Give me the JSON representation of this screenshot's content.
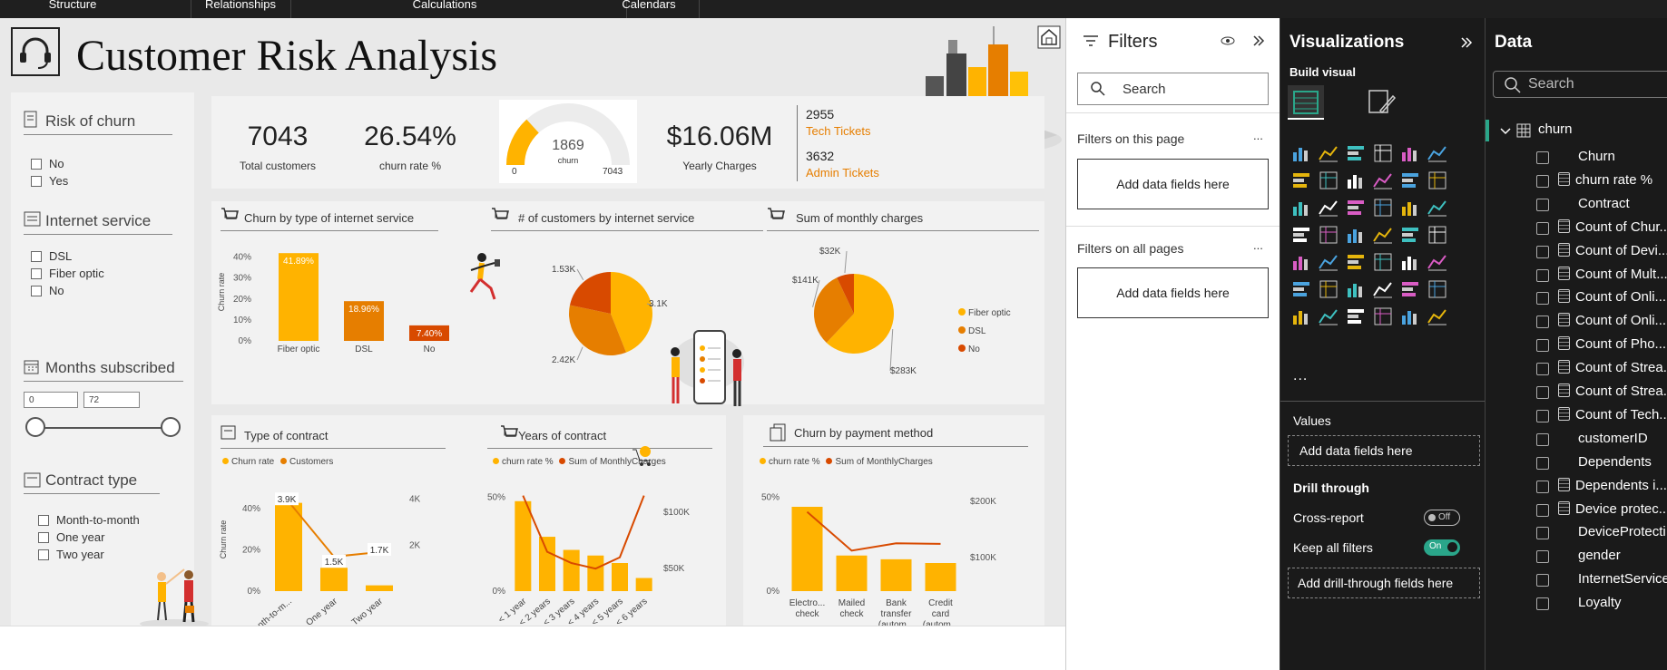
{
  "topbar": {
    "tabs": [
      "Structure",
      "Relationships",
      "Calculations",
      "Calendars"
    ]
  },
  "report": {
    "title": "Customer Risk Analysis",
    "slicers": {
      "risk": {
        "title": "Risk of churn",
        "options": [
          "No",
          "Yes"
        ]
      },
      "internet": {
        "title": "Internet service",
        "options": [
          "DSL",
          "Fiber optic",
          "No"
        ]
      },
      "months": {
        "title": "Months subscribed",
        "min": "0",
        "max": "72"
      },
      "contract": {
        "title": "Contract type",
        "options": [
          "Month-to-month",
          "One year",
          "Two year"
        ]
      }
    },
    "kpis": {
      "total_customers": {
        "value": "7043",
        "label": "Total customers"
      },
      "churn_rate": {
        "value": "26.54%",
        "label": "churn rate %"
      },
      "gauge": {
        "value": "1869",
        "label": "churn",
        "min": "0",
        "max": "7043",
        "fraction": 0.265
      },
      "yearly": {
        "value": "$16.06M",
        "label": "Yearly Charges"
      },
      "tech": {
        "value": "2955",
        "label": "Tech Tickets"
      },
      "admin": {
        "value": "3632",
        "label": "Admin Tickets"
      }
    },
    "charts": {
      "churn_internet": {
        "title": "Churn by type of internet service",
        "ylabel": "Churn rate",
        "yticks": [
          "40%",
          "30%",
          "20%",
          "10%",
          "0%"
        ]
      },
      "customers_internet": {
        "title": "# of customers by internet service"
      },
      "monthly": {
        "title": "Sum of monthly charges"
      },
      "contract": {
        "title": "Type of contract",
        "legend": [
          "Churn rate",
          "Customers"
        ],
        "ylabel": "Churn rate",
        "yticks": [
          "40%",
          "20%",
          "0%"
        ],
        "y2ticks": [
          "4K",
          "2K"
        ]
      },
      "years": {
        "title": "Years of contract",
        "legend": [
          "churn rate %",
          "Sum of MonthlyCharges"
        ],
        "yticks": [
          "50%",
          "0%"
        ],
        "y2ticks": [
          "$100K",
          "$50K"
        ]
      },
      "payment": {
        "title": "Churn by payment method",
        "legend": [
          "churn rate %",
          "Sum of MonthlyCharges"
        ],
        "yticks": [
          "50%",
          "0%"
        ],
        "y2ticks": [
          "$200K",
          "$100K"
        ]
      }
    }
  },
  "chart_data": [
    {
      "type": "bar",
      "title": "Churn by type of internet service",
      "categories": [
        "Fiber optic",
        "DSL",
        "No"
      ],
      "values": [
        41.89,
        18.96,
        7.4
      ],
      "labels": [
        "41.89%",
        "18.96%",
        "7.40%"
      ],
      "ylabel": "Churn rate",
      "ylim": [
        0,
        45
      ]
    },
    {
      "type": "pie",
      "title": "# of customers by internet service",
      "categories": [
        "Fiber optic",
        "DSL",
        "No"
      ],
      "values": [
        3100,
        2420,
        1530
      ],
      "labels": [
        "3.1K",
        "2.42K",
        "1.53K"
      ]
    },
    {
      "type": "pie",
      "title": "Sum of monthly charges",
      "categories": [
        "Fiber optic",
        "DSL",
        "No"
      ],
      "values": [
        283,
        141,
        32
      ],
      "labels": [
        "$283K",
        "$141K",
        "$32K"
      ],
      "legend": [
        "Fiber optic",
        "DSL",
        "No"
      ]
    },
    {
      "type": "bar",
      "title": "Type of contract",
      "categories": [
        "Month-to-m...",
        "One year",
        "Two year"
      ],
      "series": [
        {
          "name": "Churn rate",
          "values": [
            42.7,
            11.3,
            2.8
          ]
        },
        {
          "name": "Customers",
          "values": [
            3900,
            1500,
            1700
          ]
        }
      ],
      "labels": [
        "3.9K",
        "1.5K",
        "1.7K"
      ],
      "ylim": [
        0,
        50
      ],
      "y2lim": [
        0,
        4500
      ]
    },
    {
      "type": "bar",
      "title": "Years of contract",
      "categories": [
        "< 1 year",
        "< 2 years",
        "< 3 years",
        "< 4 years",
        "< 5 years",
        "< 6 years"
      ],
      "series": [
        {
          "name": "churn rate %",
          "values": [
            48,
            29,
            22,
            19,
            15,
            7
          ]
        },
        {
          "name": "Sum of MonthlyCharges",
          "values": [
            115,
            65,
            55,
            50,
            60,
            115
          ]
        }
      ],
      "ylim": [
        0,
        60
      ],
      "y2lim": [
        30,
        130
      ]
    },
    {
      "type": "bar",
      "title": "Churn by payment method",
      "categories": [
        "Electro... check",
        "Mailed check",
        "Bank transfer (autom...",
        "Credit card (autom..."
      ],
      "series": [
        {
          "name": "churn rate %",
          "values": [
            45,
            19,
            17,
            15
          ]
        },
        {
          "name": "Sum of MonthlyCharges",
          "values": [
            181,
            112,
            125,
            124
          ]
        }
      ],
      "ylim": [
        0,
        60
      ],
      "y2lim": [
        40,
        240
      ]
    }
  ],
  "filters": {
    "title": "Filters",
    "search": "Search",
    "on_page": "Filters on this page",
    "on_all": "Filters on all pages",
    "add": "Add data fields here",
    "more": "..."
  },
  "viz": {
    "title": "Visualizations",
    "build": "Build visual",
    "more": "...",
    "values": "Values",
    "add_values": "Add data fields here",
    "drill": "Drill through",
    "cross": "Cross-report",
    "cross_state": "Off",
    "keep": "Keep all filters",
    "keep_state": "On",
    "add_drill": "Add drill-through fields here"
  },
  "data_pane": {
    "title": "Data",
    "search": "Search",
    "table": "churn",
    "fields": [
      {
        "name": "Churn",
        "calc": false
      },
      {
        "name": "churn rate %",
        "calc": true
      },
      {
        "name": "Contract",
        "calc": false
      },
      {
        "name": "Count of Chur...",
        "calc": true
      },
      {
        "name": "Count of Devi...",
        "calc": true
      },
      {
        "name": "Count of Mult...",
        "calc": true
      },
      {
        "name": "Count of Onli...",
        "calc": true
      },
      {
        "name": "Count of Onli...",
        "calc": true
      },
      {
        "name": "Count of Pho...",
        "calc": true
      },
      {
        "name": "Count of Strea...",
        "calc": true
      },
      {
        "name": "Count of Strea...",
        "calc": true
      },
      {
        "name": "Count of Tech...",
        "calc": true
      },
      {
        "name": "customerID",
        "calc": false
      },
      {
        "name": "Dependents",
        "calc": false
      },
      {
        "name": "Dependents i...",
        "calc": true
      },
      {
        "name": "Device protec...",
        "calc": true
      },
      {
        "name": "DeviceProtecti...",
        "calc": false
      },
      {
        "name": "gender",
        "calc": false
      },
      {
        "name": "InternetService",
        "calc": false
      },
      {
        "name": "Loyalty",
        "calc": false
      }
    ]
  },
  "colors": {
    "orange": "#ffb300",
    "dark_orange": "#e67e00",
    "red": "#d84a00",
    "green": "#2aa68a"
  }
}
